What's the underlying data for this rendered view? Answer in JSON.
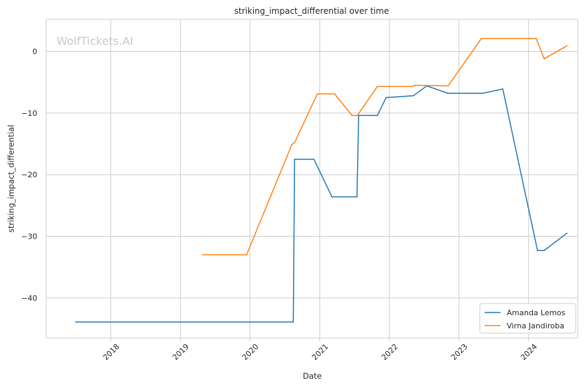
{
  "chart_data": {
    "type": "line",
    "title": "striking_impact_differential over time",
    "xlabel": "Date",
    "ylabel": "striking_impact_differential",
    "watermark": "WolfTickets.AI",
    "x_ticks": [
      "2018",
      "2019",
      "2020",
      "2021",
      "2022",
      "2023",
      "2024"
    ],
    "y_ticks": [
      0,
      -10,
      -20,
      -30,
      -40
    ],
    "xlim": [
      "2017-01-27",
      "2024-09-15"
    ],
    "ylim": [
      -46.5,
      5.2
    ],
    "grid": true,
    "legend_position": "lower right",
    "series": [
      {
        "name": "Amanda Lemos",
        "color": "#1f77b4",
        "points": [
          [
            "2017-07-01",
            -43.9
          ],
          [
            "2020-08-15",
            -43.9
          ],
          [
            "2020-08-22",
            -17.5
          ],
          [
            "2020-12-01",
            -17.5
          ],
          [
            "2021-03-06",
            -23.6
          ],
          [
            "2021-07-15",
            -23.6
          ],
          [
            "2021-07-24",
            -10.4
          ],
          [
            "2021-10-30",
            -10.4
          ],
          [
            "2021-12-15",
            -7.5
          ],
          [
            "2022-05-07",
            -7.2
          ],
          [
            "2022-07-16",
            -5.6
          ],
          [
            "2022-11-05",
            -6.8
          ],
          [
            "2023-05-06",
            -6.8
          ],
          [
            "2023-08-19",
            -6.1
          ],
          [
            "2024-02-17",
            -32.3
          ],
          [
            "2024-03-23",
            -32.3
          ],
          [
            "2024-07-20",
            -29.5
          ]
        ]
      },
      {
        "name": "Virna Jandiroba",
        "color": "#ff7f0e",
        "points": [
          [
            "2019-04-27",
            -33.0
          ],
          [
            "2019-12-14",
            -33.0
          ],
          [
            "2020-08-08",
            -15.1
          ],
          [
            "2020-08-22",
            -14.8
          ],
          [
            "2020-12-19",
            -6.9
          ],
          [
            "2021-03-20",
            -6.9
          ],
          [
            "2021-06-19",
            -10.4
          ],
          [
            "2021-07-17",
            -10.4
          ],
          [
            "2021-10-30",
            -5.7
          ],
          [
            "2022-04-30",
            -5.7
          ],
          [
            "2022-05-14",
            -5.5
          ],
          [
            "2022-11-05",
            -5.6
          ],
          [
            "2023-04-29",
            2.1
          ],
          [
            "2024-02-10",
            2.1
          ],
          [
            "2024-03-23",
            -1.2
          ],
          [
            "2024-07-20",
            0.9
          ]
        ]
      }
    ]
  }
}
